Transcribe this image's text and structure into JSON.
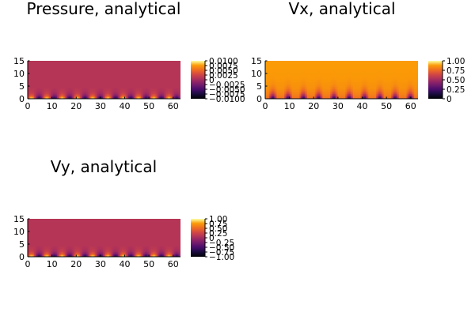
{
  "chart_data": [
    {
      "type": "heatmap",
      "title": "Pressure, analytical",
      "xlim": [
        0,
        63
      ],
      "ylim": [
        0,
        15
      ],
      "xticks": [
        "0",
        "10",
        "20",
        "30",
        "40",
        "50",
        "60"
      ],
      "yticks": [
        "0",
        "5",
        "10",
        "15"
      ],
      "colorbar_ticks": [
        "−0.0100",
        "−0.0075",
        "−0.0050",
        "−0.0025",
        "0",
        "0.0025",
        "0.0050",
        "0.0075",
        "0.0100"
      ],
      "colormap": "inferno",
      "periods": 10,
      "background_fraction": 0.55,
      "pattern": "alternating"
    },
    {
      "type": "heatmap",
      "title": "Vx, analytical",
      "xlim": [
        0,
        63
      ],
      "ylim": [
        0,
        15
      ],
      "xticks": [
        "0",
        "10",
        "20",
        "30",
        "40",
        "50",
        "60"
      ],
      "yticks": [
        "0",
        "5",
        "10",
        "15"
      ],
      "colorbar_ticks": [
        "0",
        "0.25",
        "0.50",
        "0.75",
        "1.00"
      ],
      "colormap": "inferno",
      "periods": 10,
      "background_fraction": 0.88,
      "pattern": "bumps"
    },
    {
      "type": "heatmap",
      "title": "Vy, analytical",
      "xlim": [
        0,
        63
      ],
      "ylim": [
        0,
        15
      ],
      "xticks": [
        "0",
        "10",
        "20",
        "30",
        "40",
        "50",
        "60"
      ],
      "yticks": [
        "0",
        "5",
        "10",
        "15"
      ],
      "colorbar_ticks": [
        "−1.00",
        "−0.75",
        "−0.50",
        "−0.25",
        "0",
        "0.25",
        "0.50",
        "0.75",
        "1.00"
      ],
      "colormap": "inferno",
      "periods": 10,
      "background_fraction": 0.55,
      "pattern": "alternating"
    }
  ]
}
